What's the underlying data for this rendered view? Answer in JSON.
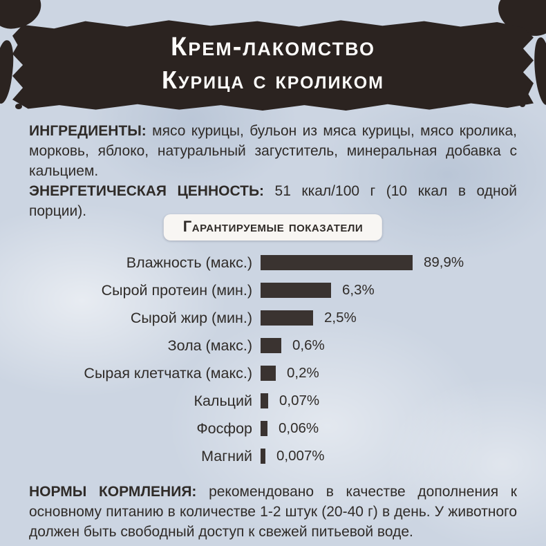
{
  "page": {
    "background": "#ccd5e2",
    "ink": "#2f2b28",
    "banner_color": "#2b2320",
    "bar_color": "#3a3330"
  },
  "header": {
    "line1": "Крем-лакомство",
    "line2": "Курица с кроликом"
  },
  "ingredients": {
    "label": "ИНГРЕДИЕНТЫ:",
    "text": "мясо курицы, бульон из мяса курицы, мясо кролика, морковь, яблоко, натуральный загуститель, минеральная добавка с кальцием."
  },
  "energy": {
    "label": "ЭНЕРГЕТИЧЕСКАЯ ЦЕННОСТЬ:",
    "text": "51 ккал/100 г (10 ккал в одной порции)."
  },
  "chart_data": {
    "type": "bar",
    "orientation": "horizontal",
    "title": "Гарантируемые показатели",
    "unit": "%",
    "legend": false,
    "grid": false,
    "value_axis_visible": false,
    "rows": [
      {
        "label": "Влажность (макс.)",
        "value": 89.9,
        "value_label": "89,9%",
        "bar_px": "220px"
      },
      {
        "label": "Сырой протеин (мин.)",
        "value": 6.3,
        "value_label": "6,3%",
        "bar_px": "102px"
      },
      {
        "label": "Сырой жир (мин.)",
        "value": 2.5,
        "value_label": "2,5%",
        "bar_px": "76px"
      },
      {
        "label": "Зола (макс.)",
        "value": 0.6,
        "value_label": "0,6%",
        "bar_px": "30px"
      },
      {
        "label": "Сырая клетчатка (макс.)",
        "value": 0.2,
        "value_label": "0,2%",
        "bar_px": "22px"
      },
      {
        "label": "Кальций",
        "value": 0.07,
        "value_label": "0,07%",
        "bar_px": "11px"
      },
      {
        "label": "Фосфор",
        "value": 0.06,
        "value_label": "0,06%",
        "bar_px": "10px"
      },
      {
        "label": "Магний",
        "value": 0.007,
        "value_label": "0,007%",
        "bar_px": "7px"
      }
    ]
  },
  "feeding": {
    "label": "НОРМЫ КОРМЛЕНИЯ:",
    "text": "рекомендовано в качестве дополнения к основному питанию в количестве 1-2 штук (20-40 г) в день. У животного должен быть свободный доступ к свежей питьевой воде."
  }
}
